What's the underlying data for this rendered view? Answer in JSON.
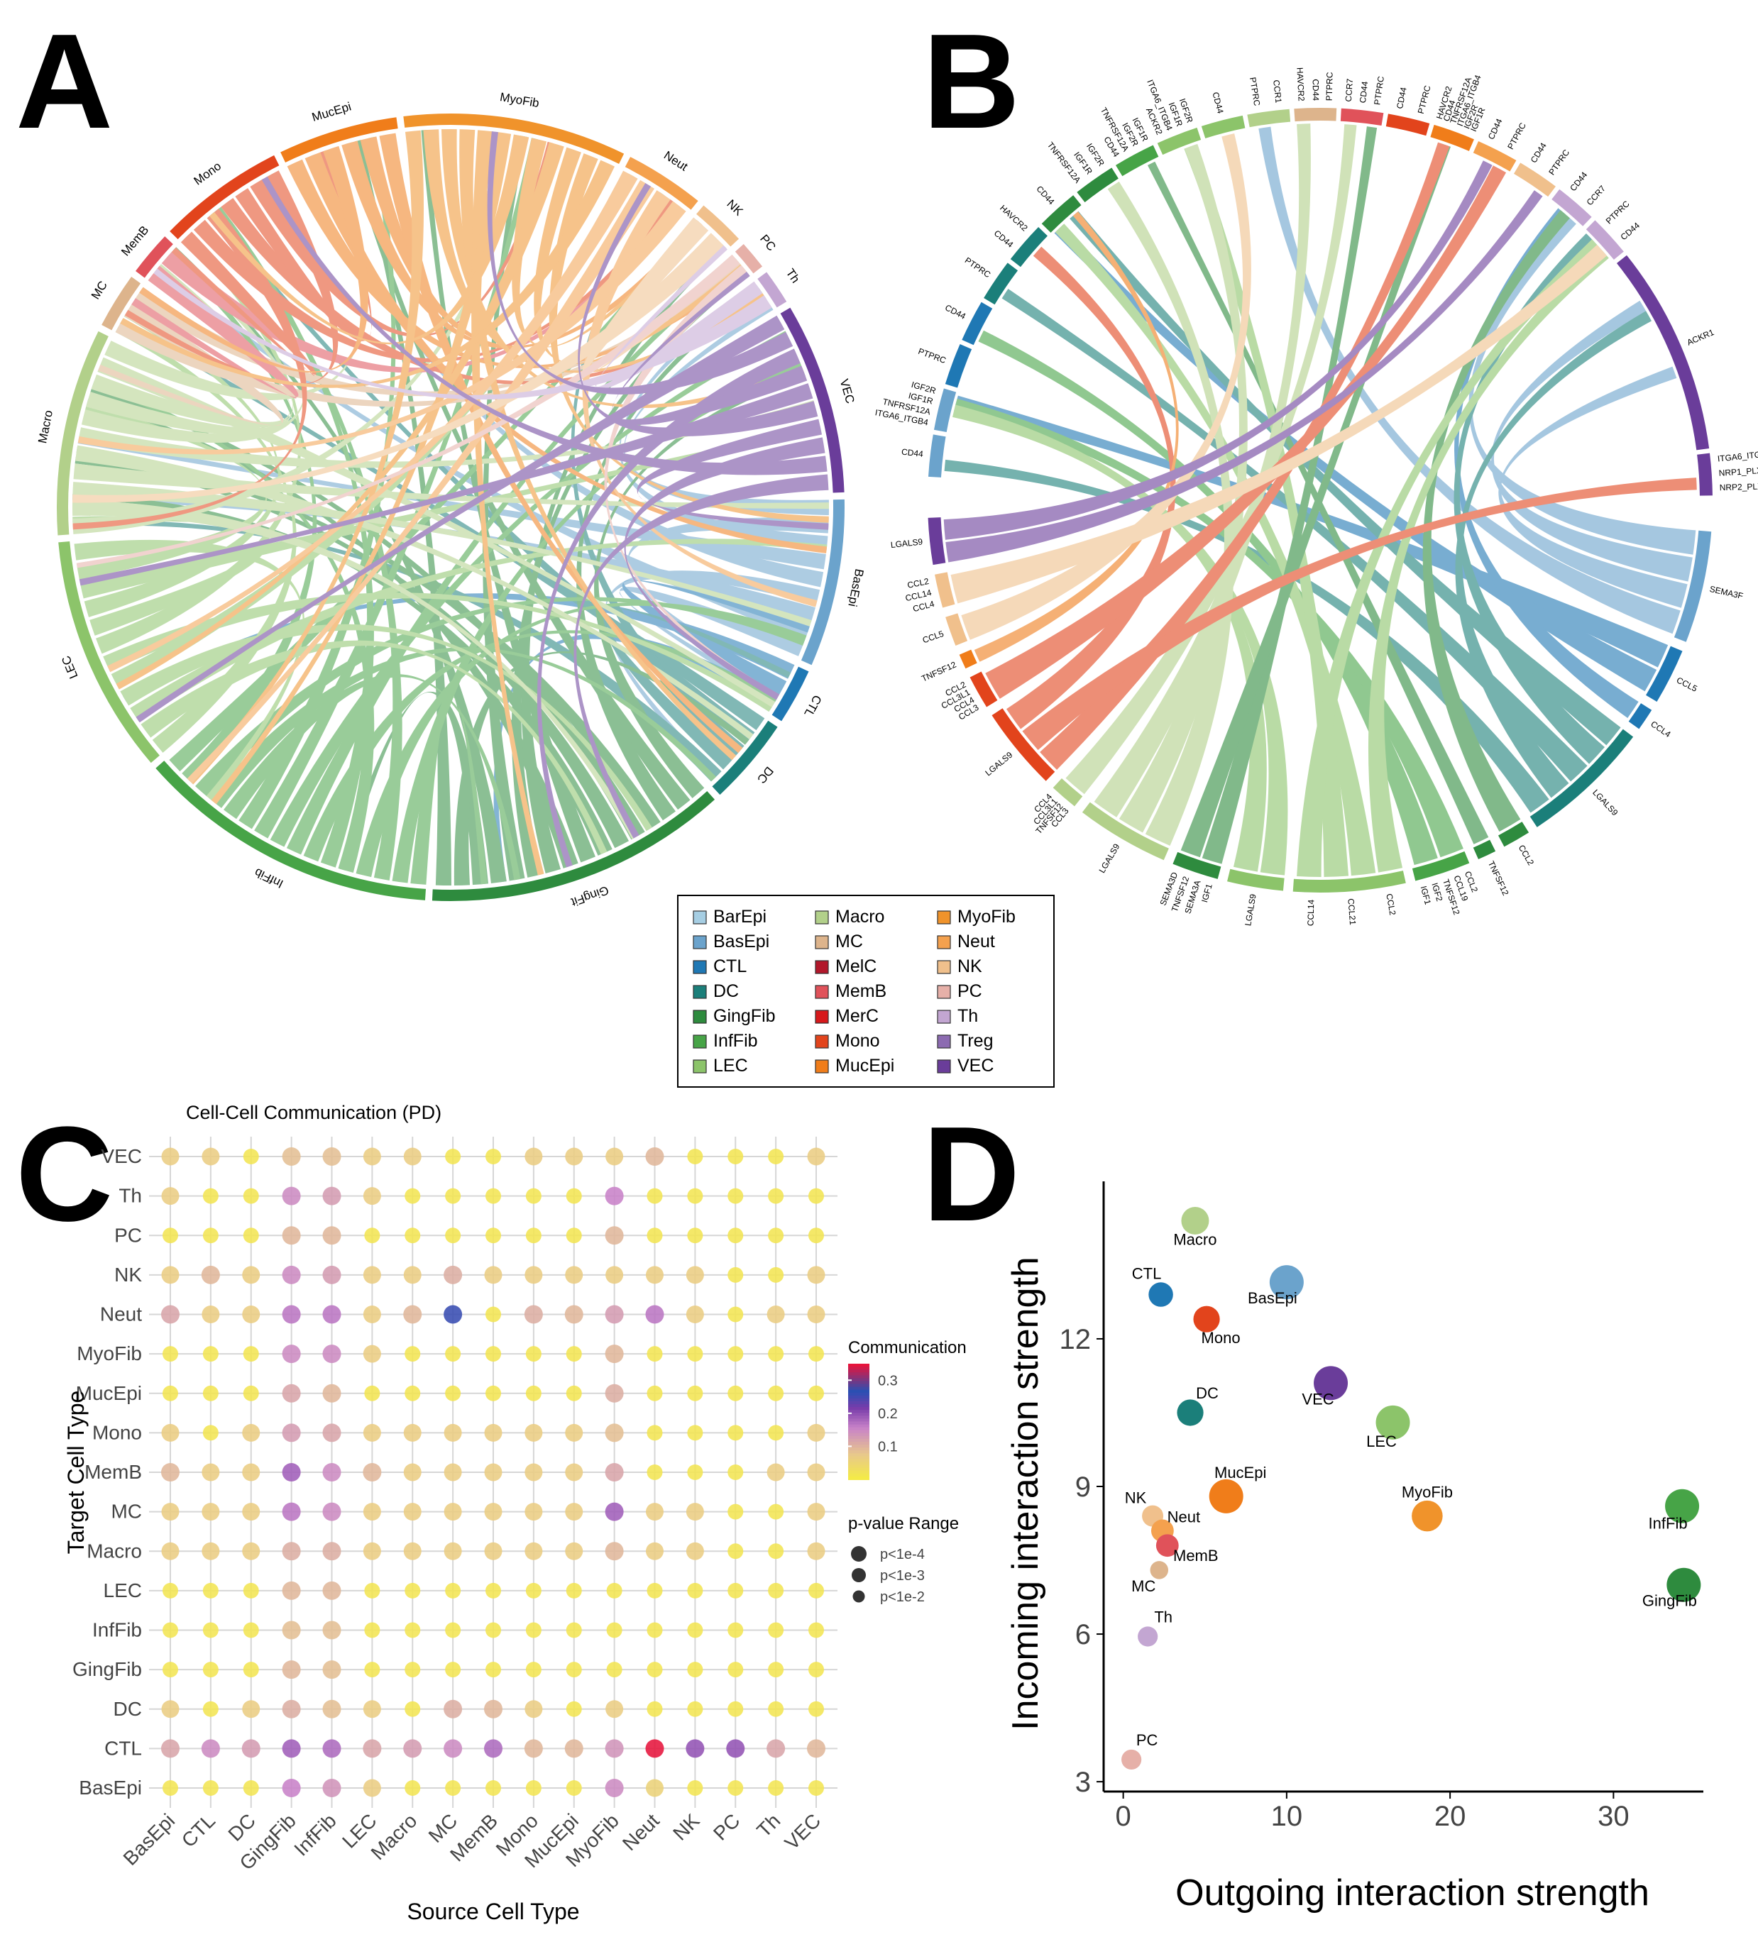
{
  "panels": {
    "A": {
      "label": "A"
    },
    "B": {
      "label": "B"
    },
    "C": {
      "label": "C"
    },
    "D": {
      "label": "D"
    }
  },
  "cell_colors": {
    "BarEpi": "#a6cee3",
    "BasEpi": "#6ba3cc",
    "CTL": "#1f78b4",
    "DC": "#1b7f7a",
    "GingFib": "#2e8b3e",
    "InfFib": "#47a447",
    "LEC": "#8cc46a",
    "Macro": "#b2d08a",
    "MC": "#ddb48c",
    "MelC": "#b2182b",
    "MemB": "#e0525a",
    "MerC": "#d7191c",
    "Mono": "#e2441c",
    "MucEpi": "#f07d1a",
    "MyoFib": "#f0932b",
    "Neut": "#f4a14e",
    "NK": "#f0c08c",
    "PC": "#e6b0a8",
    "Th": "#c3a6d2",
    "Treg": "#8c6bb1",
    "VEC": "#6a3d9a"
  },
  "legend": {
    "items": [
      "BarEpi",
      "BasEpi",
      "CTL",
      "DC",
      "GingFib",
      "InfFib",
      "LEC",
      "Macro",
      "MC",
      "MelC",
      "MemB",
      "MerC",
      "Mono",
      "MucEpi",
      "MyoFib",
      "Neut",
      "NK",
      "PC",
      "Th",
      "Treg",
      "VEC"
    ]
  },
  "chart_data": [
    {
      "type": "chord",
      "panel": "A",
      "sectors": [
        {
          "name": "BasEpi",
          "weight": 10.5
        },
        {
          "name": "CTL",
          "weight": 3.5
        },
        {
          "name": "DC",
          "weight": 5.5
        },
        {
          "name": "GingFit",
          "weight": 19
        },
        {
          "name": "InfFib",
          "weight": 19
        },
        {
          "name": "LEC",
          "weight": 15
        },
        {
          "name": "Macro",
          "weight": 13
        },
        {
          "name": "MC",
          "weight": 3.5
        },
        {
          "name": "MemB",
          "weight": 2.8
        },
        {
          "name": "Mono",
          "weight": 8
        },
        {
          "name": "MucEpi",
          "weight": 7.5
        },
        {
          "name": "MyoFib",
          "weight": 14
        },
        {
          "name": "Neut",
          "weight": 5
        },
        {
          "name": "NK",
          "weight": 3
        },
        {
          "name": "PC",
          "weight": 1.8
        },
        {
          "name": "Th",
          "weight": 2.2
        },
        {
          "name": "VEC",
          "weight": 12
        }
      ]
    },
    {
      "type": "chord",
      "panel": "B",
      "ligand_groups": [
        {
          "genes": [
            "SEMA3F"
          ],
          "cell": "BasEpi",
          "weight": 6
        },
        {
          "genes": [
            "CCL5"
          ],
          "cell": "CTL",
          "weight": 3
        },
        {
          "genes": [
            "CCL4"
          ],
          "cell": "CTL",
          "weight": 1.2
        },
        {
          "genes": [
            "LGALS9"
          ],
          "cell": "DC",
          "weight": 7
        },
        {
          "genes": [
            "CCL2"
          ],
          "cell": "GingFib",
          "weight": 1.5
        },
        {
          "genes": [
            "TNFSF12"
          ],
          "cell": "GingFib",
          "weight": 1
        },
        {
          "genes": [
            "CCL2",
            "CCL19",
            "TNFSF12",
            "IGF2",
            "IGF1"
          ],
          "cell": "InfFib",
          "weight": 3
        },
        {
          "genes": [
            "CCL2",
            "CCL21",
            "CCL14"
          ],
          "cell": "LEC",
          "weight": 6
        },
        {
          "genes": [
            "LGALS9"
          ],
          "cell": "LEC",
          "weight": 3
        },
        {
          "genes": [
            "IGF1",
            "SEMA3A",
            "TNFSF12",
            "SEMA3D"
          ],
          "cell": "GingFib",
          "weight": 2.5
        },
        {
          "genes": [
            "LGALS9"
          ],
          "cell": "Macro",
          "weight": 5
        },
        {
          "genes": [
            "CCL3",
            "TNFSF12",
            "CCL3L1",
            "CCL4"
          ],
          "cell": "Macro",
          "weight": 1.5
        },
        {
          "genes": [
            "LGALS9"
          ],
          "cell": "Mono",
          "weight": 4.5
        },
        {
          "genes": [
            "CCL3",
            "CCL4",
            "CCL3L1",
            "CCL2"
          ],
          "cell": "Mono",
          "weight": 1.8
        },
        {
          "genes": [
            "TNFSF12"
          ],
          "cell": "MucEpi",
          "weight": 0.8
        },
        {
          "genes": [
            "CCL5"
          ],
          "cell": "NK",
          "weight": 1.6
        },
        {
          "genes": [
            "CCL4",
            "CCL14",
            "CCL2"
          ],
          "cell": "NK",
          "weight": 1.8
        },
        {
          "genes": [
            "LGALS9"
          ],
          "cell": "VEC",
          "weight": 2.5
        }
      ],
      "receptor_groups": [
        {
          "genes": [
            "CD44"
          ],
          "cell": "BasEpi"
        },
        {
          "genes": [
            "ITGA6_ITGB4",
            "TNFRSF12A",
            "IGF1R",
            "IGF2R"
          ],
          "cell": "BasEpi"
        },
        {
          "genes": [
            "PTPRC"
          ],
          "cell": "CTL"
        },
        {
          "genes": [
            "CD44"
          ],
          "cell": "CTL"
        },
        {
          "genes": [
            "PTPRC"
          ],
          "cell": "DC"
        },
        {
          "genes": [
            "CD44",
            "HAVCR2"
          ],
          "cell": "DC"
        },
        {
          "genes": [
            "CD44"
          ],
          "cell": "GingFib"
        },
        {
          "genes": [
            "TNFRSF12A",
            "IGF1R",
            "IGF2R"
          ],
          "cell": "GingFib"
        },
        {
          "genes": [
            "CD44",
            "TNFRSF12A",
            "IGF2R",
            "IGF1R"
          ],
          "cell": "InfFib"
        },
        {
          "genes": [
            "ACKR2",
            "ITGA6_ITGB4",
            "IGF1R",
            "IGF2R"
          ],
          "cell": "LEC"
        },
        {
          "genes": [
            "CD44"
          ],
          "cell": "LEC"
        },
        {
          "genes": [
            "PTPRC",
            "CCR1"
          ],
          "cell": "Macro"
        },
        {
          "genes": [
            "HAVCR2",
            "CD44",
            "PTPRC"
          ],
          "cell": "MC"
        },
        {
          "genes": [
            "CCR7",
            "CD44",
            "PTPRC"
          ],
          "cell": "MemB"
        },
        {
          "genes": [
            "CD44",
            "PTPRC"
          ],
          "cell": "Mono"
        },
        {
          "genes": [
            "HAVCR2",
            "CD44",
            "TNFRSF12A",
            "ITGA6_ITGB4",
            "IGF2R",
            "IGF1R"
          ],
          "cell": "MucEpi"
        },
        {
          "genes": [
            "CD44",
            "PTPRC"
          ],
          "cell": "Neut"
        },
        {
          "genes": [
            "CD44",
            "PTPRC"
          ],
          "cell": "NK"
        },
        {
          "genes": [
            "CD44",
            "CCR7"
          ],
          "cell": "Th"
        },
        {
          "genes": [
            "PTPRC",
            "CD44"
          ],
          "cell": "Th"
        },
        {
          "genes": [
            "ACKR1"
          ],
          "cell": "VEC"
        },
        {
          "genes": [
            "ITGA6_ITGB4",
            "NRP1_PLXNA2",
            "NRP2_PLXNA2"
          ],
          "cell": "VEC"
        }
      ]
    },
    {
      "type": "bubble",
      "panel": "C",
      "title": "Cell-Cell Communication (PD)",
      "xlabel": "Source Cell Type",
      "ylabel": "Target Cell Type",
      "x_categories": [
        "BasEpi",
        "CTL",
        "DC",
        "GingFib",
        "InfFib",
        "LEC",
        "Macro",
        "MC",
        "MemB",
        "Mono",
        "MucEpi",
        "MyoFib",
        "Neut",
        "NK",
        "PC",
        "Th",
        "VEC"
      ],
      "y_categories": [
        "BasEpi",
        "CTL",
        "DC",
        "GingFib",
        "InfFib",
        "LEC",
        "Macro",
        "MC",
        "MemB",
        "Mono",
        "MucEpi",
        "MyoFib",
        "Neut",
        "NK",
        "PC",
        "Th",
        "VEC"
      ],
      "color_title": "Communication",
      "color_ticks": [
        0.1,
        0.2,
        0.3
      ],
      "color_range": [
        0,
        0.35
      ],
      "size_title": "p-value Range",
      "size_levels": [
        "p<1e-4",
        "p<1e-3",
        "p<1e-2"
      ],
      "values": [
        [
          0.02,
          0.02,
          0.02,
          0.16,
          0.14,
          0.07,
          0.02,
          0.02,
          0.02,
          0.02,
          0.02,
          0.15,
          0.06,
          0.02,
          0.02,
          0.02,
          0.02
        ],
        [
          0.12,
          0.15,
          0.13,
          0.19,
          0.18,
          0.12,
          0.13,
          0.15,
          0.18,
          0.1,
          0.1,
          0.14,
          0.35,
          0.2,
          0.2,
          0.12,
          0.1
        ],
        [
          0.07,
          0.02,
          0.07,
          0.11,
          0.09,
          0.07,
          0.02,
          0.11,
          0.1,
          0.07,
          0.02,
          0.07,
          0.02,
          0.02,
          0.02,
          0.02,
          0.02
        ],
        [
          0.02,
          0.02,
          0.02,
          0.1,
          0.09,
          0.02,
          0.02,
          0.02,
          0.02,
          0.02,
          0.02,
          0.02,
          0.02,
          0.02,
          0.02,
          0.02,
          0.02
        ],
        [
          0.02,
          0.02,
          0.02,
          0.09,
          0.09,
          0.02,
          0.02,
          0.02,
          0.02,
          0.02,
          0.02,
          0.02,
          0.02,
          0.02,
          0.02,
          0.02,
          0.02
        ],
        [
          0.02,
          0.02,
          0.02,
          0.1,
          0.1,
          0.02,
          0.02,
          0.02,
          0.02,
          0.02,
          0.02,
          0.02,
          0.02,
          0.02,
          0.02,
          0.02,
          0.02
        ],
        [
          0.07,
          0.07,
          0.07,
          0.11,
          0.11,
          0.07,
          0.07,
          0.07,
          0.07,
          0.07,
          0.07,
          0.1,
          0.07,
          0.07,
          0.02,
          0.02,
          0.07
        ],
        [
          0.07,
          0.07,
          0.07,
          0.17,
          0.15,
          0.07,
          0.07,
          0.07,
          0.07,
          0.07,
          0.07,
          0.19,
          0.07,
          0.07,
          0.02,
          0.02,
          0.07
        ],
        [
          0.1,
          0.07,
          0.07,
          0.19,
          0.15,
          0.1,
          0.07,
          0.07,
          0.07,
          0.07,
          0.07,
          0.12,
          0.02,
          0.02,
          0.02,
          0.07,
          0.07
        ],
        [
          0.07,
          0.02,
          0.07,
          0.13,
          0.12,
          0.07,
          0.07,
          0.07,
          0.07,
          0.07,
          0.07,
          0.09,
          0.02,
          0.02,
          0.02,
          0.02,
          0.07
        ],
        [
          0.02,
          0.02,
          0.02,
          0.12,
          0.1,
          0.02,
          0.02,
          0.02,
          0.02,
          0.02,
          0.02,
          0.11,
          0.02,
          0.02,
          0.02,
          0.02,
          0.02
        ],
        [
          0.02,
          0.02,
          0.02,
          0.15,
          0.15,
          0.07,
          0.02,
          0.02,
          0.02,
          0.02,
          0.02,
          0.1,
          0.02,
          0.02,
          0.02,
          0.02,
          0.02
        ],
        [
          0.12,
          0.07,
          0.07,
          0.17,
          0.17,
          0.07,
          0.1,
          0.26,
          0.02,
          0.11,
          0.1,
          0.13,
          0.17,
          0.07,
          0.02,
          0.07,
          0.07
        ],
        [
          0.07,
          0.1,
          0.07,
          0.15,
          0.13,
          0.07,
          0.07,
          0.11,
          0.07,
          0.07,
          0.07,
          0.07,
          0.07,
          0.07,
          0.02,
          0.02,
          0.07
        ],
        [
          0.02,
          0.02,
          0.02,
          0.1,
          0.1,
          0.02,
          0.02,
          0.02,
          0.02,
          0.02,
          0.02,
          0.1,
          0.02,
          0.02,
          0.02,
          0.02,
          0.02
        ],
        [
          0.07,
          0.02,
          0.02,
          0.15,
          0.13,
          0.07,
          0.02,
          0.02,
          0.02,
          0.02,
          0.02,
          0.16,
          0.02,
          0.02,
          0.02,
          0.02,
          0.02
        ],
        [
          0.07,
          0.07,
          0.02,
          0.09,
          0.09,
          0.07,
          0.07,
          0.02,
          0.02,
          0.07,
          0.07,
          0.07,
          0.1,
          0.02,
          0.02,
          0.02,
          0.07
        ]
      ]
    },
    {
      "type": "scatter",
      "panel": "D",
      "xlabel": "Outgoing interaction strength",
      "ylabel": "Incoming interaction strength",
      "xlim": [
        -1.2,
        35.5
      ],
      "ylim": [
        2.8,
        15.2
      ],
      "xticks": [
        0,
        10,
        20,
        30
      ],
      "yticks": [
        3,
        6,
        9,
        12
      ],
      "points": [
        {
          "name": "Macro",
          "x": 4.4,
          "y": 14.4,
          "size": 3
        },
        {
          "name": "BasEpi",
          "x": 10.0,
          "y": 13.15,
          "size": 4
        },
        {
          "name": "CTL",
          "x": 2.3,
          "y": 12.9,
          "size": 2.5
        },
        {
          "name": "Mono",
          "x": 5.1,
          "y": 12.4,
          "size": 2.8
        },
        {
          "name": "VEC",
          "x": 12.7,
          "y": 11.1,
          "size": 4
        },
        {
          "name": "DC",
          "x": 4.1,
          "y": 10.5,
          "size": 2.8
        },
        {
          "name": "LEC",
          "x": 16.5,
          "y": 10.3,
          "size": 4
        },
        {
          "name": "MucEpi",
          "x": 6.3,
          "y": 8.8,
          "size": 4
        },
        {
          "name": "InfFib",
          "x": 34.2,
          "y": 8.6,
          "size": 4
        },
        {
          "name": "MyoFib",
          "x": 18.6,
          "y": 8.4,
          "size": 3.5
        },
        {
          "name": "NK",
          "x": 1.8,
          "y": 8.4,
          "size": 2
        },
        {
          "name": "Neut",
          "x": 2.4,
          "y": 8.1,
          "size": 2.2
        },
        {
          "name": "MemB",
          "x": 2.7,
          "y": 7.8,
          "size": 2.2
        },
        {
          "name": "MC",
          "x": 2.2,
          "y": 7.3,
          "size": 1.5
        },
        {
          "name": "GingFib",
          "x": 34.3,
          "y": 7.0,
          "size": 4
        },
        {
          "name": "Th",
          "x": 1.5,
          "y": 5.95,
          "size": 1.8
        },
        {
          "name": "PC",
          "x": 0.5,
          "y": 3.45,
          "size": 1.8
        }
      ]
    }
  ]
}
